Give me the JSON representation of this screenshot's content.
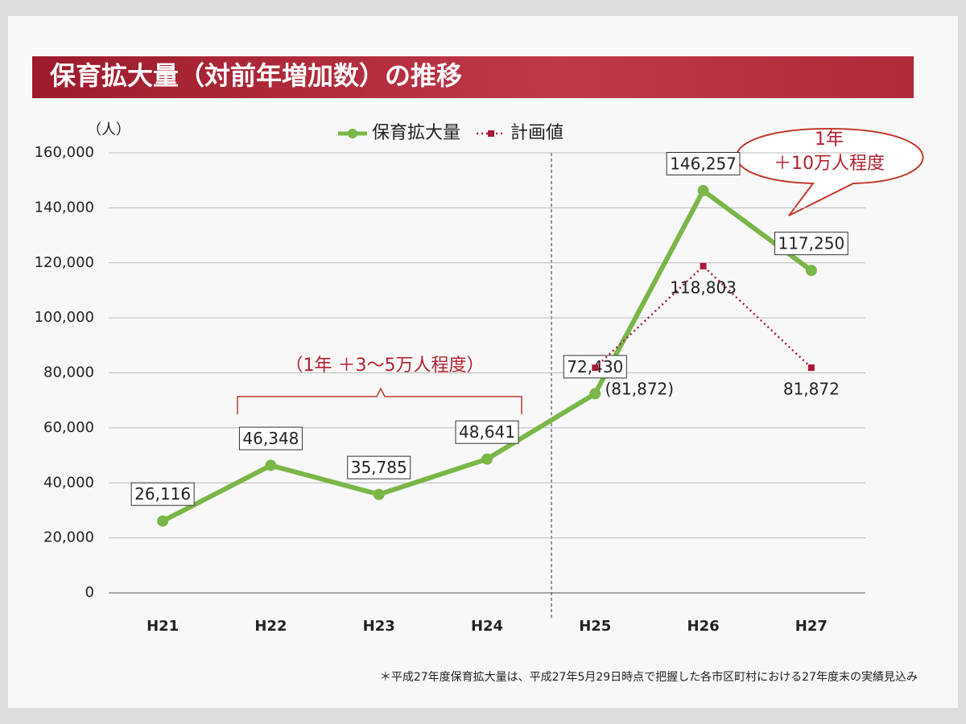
{
  "chart_data": {
    "type": "line",
    "title": "保育拡大量（対前年増加数）の推移",
    "y_unit": "（人）",
    "categories": [
      "H21",
      "H22",
      "H23",
      "H24",
      "H25",
      "H26",
      "H27"
    ],
    "series": [
      {
        "name": "保育拡大量",
        "color": "#7ab648",
        "values": [
          26116,
          46348,
          35785,
          48641,
          72430,
          146257,
          117250
        ],
        "value_labels": [
          "26,116",
          "46,348",
          "35,785",
          "48,641",
          "72,430",
          "146,257",
          "117,250"
        ]
      },
      {
        "name": "計画値",
        "color": "#a8193a",
        "values": [
          null,
          null,
          null,
          null,
          81872,
          118803,
          81872
        ],
        "value_labels": [
          null,
          null,
          null,
          null,
          "(81,872)",
          "118,803",
          "81,872"
        ]
      }
    ],
    "ylim": [
      0,
      160000
    ],
    "yticks": [
      0,
      {
        "value": 20000,
        "label": "20,000"
      },
      {
        "value": 40000,
        "label": "40,000"
      },
      {
        "value": 60000,
        "label": "60,000"
      },
      {
        "value": 80000,
        "label": "80,000"
      },
      {
        "value": 100000,
        "label": "100,000"
      },
      {
        "value": 120000,
        "label": "120,000"
      },
      {
        "value": 140000,
        "label": "140,000"
      },
      {
        "value": 160000,
        "label": "160,000"
      }
    ],
    "grid": true,
    "annotations": [
      "（1年 ＋3～5万人程度）",
      "1年",
      "＋10万人程度"
    ],
    "footnote": "＊平成27年度保育拡大量は、平成27年5月29日時点で把握した各市区町村における27年度末の実績見込み"
  }
}
